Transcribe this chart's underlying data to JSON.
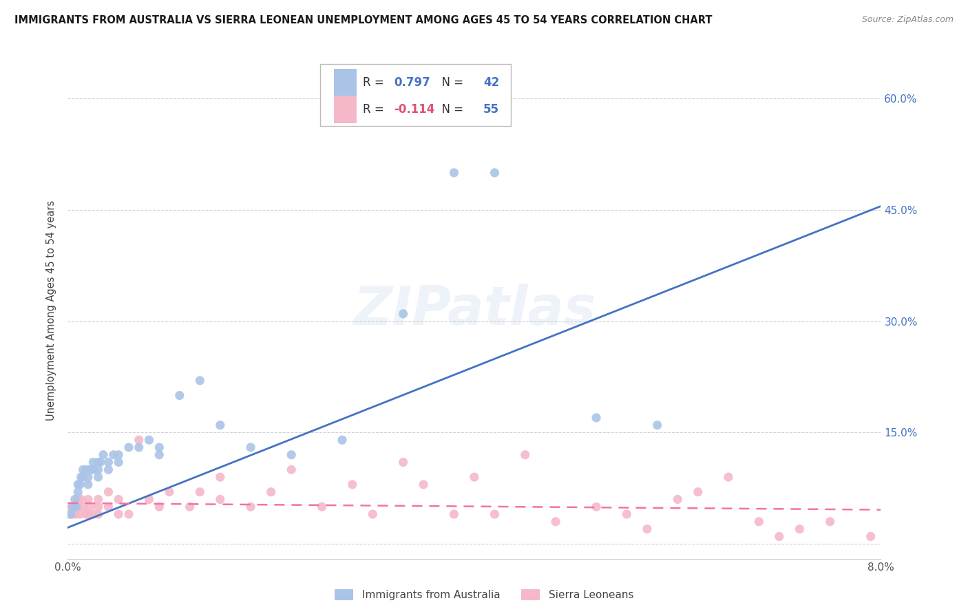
{
  "title": "IMMIGRANTS FROM AUSTRALIA VS SIERRA LEONEAN UNEMPLOYMENT AMONG AGES 45 TO 54 YEARS CORRELATION CHART",
  "source": "Source: ZipAtlas.com",
  "ylabel": "Unemployment Among Ages 45 to 54 years",
  "xlim": [
    0.0,
    0.08
  ],
  "ylim": [
    -0.02,
    0.65
  ],
  "yticks": [
    0.0,
    0.15,
    0.3,
    0.45,
    0.6
  ],
  "ytick_labels": [
    "",
    "15.0%",
    "30.0%",
    "45.0%",
    "60.0%"
  ],
  "xticks": [
    0.0,
    0.01,
    0.02,
    0.03,
    0.04,
    0.05,
    0.06,
    0.07,
    0.08
  ],
  "xtick_labels": [
    "0.0%",
    "",
    "",
    "",
    "",
    "",
    "",
    "",
    "8.0%"
  ],
  "legend_label1": "Immigrants from Australia",
  "legend_label2": "Sierra Leoneans",
  "R1": 0.797,
  "N1": 42,
  "R2": -0.114,
  "N2": 55,
  "color_blue": "#aac4e8",
  "color_pink": "#f4b8c8",
  "color_blue_line": "#4472c4",
  "color_pink_line": "#f472a0",
  "color_blue_text": "#4472c4",
  "color_pink_text": "#e05070",
  "background_color": "#ffffff",
  "grid_color": "#cccccc",
  "australia_x": [
    0.0003,
    0.0005,
    0.0007,
    0.0008,
    0.001,
    0.001,
    0.0012,
    0.0013,
    0.0015,
    0.0015,
    0.0018,
    0.002,
    0.002,
    0.0022,
    0.0025,
    0.0025,
    0.003,
    0.003,
    0.003,
    0.0032,
    0.0035,
    0.004,
    0.004,
    0.0045,
    0.005,
    0.005,
    0.006,
    0.007,
    0.008,
    0.009,
    0.009,
    0.011,
    0.013,
    0.015,
    0.018,
    0.022,
    0.027,
    0.033,
    0.038,
    0.042,
    0.052,
    0.058
  ],
  "australia_y": [
    0.04,
    0.05,
    0.06,
    0.05,
    0.07,
    0.08,
    0.08,
    0.09,
    0.09,
    0.1,
    0.1,
    0.08,
    0.09,
    0.1,
    0.1,
    0.11,
    0.09,
    0.1,
    0.11,
    0.11,
    0.12,
    0.1,
    0.11,
    0.12,
    0.11,
    0.12,
    0.13,
    0.13,
    0.14,
    0.13,
    0.12,
    0.2,
    0.22,
    0.16,
    0.13,
    0.12,
    0.14,
    0.31,
    0.5,
    0.5,
    0.17,
    0.16
  ],
  "sierraleone_x": [
    0.0002,
    0.0003,
    0.0005,
    0.0006,
    0.0008,
    0.001,
    0.001,
    0.0012,
    0.0013,
    0.0015,
    0.0018,
    0.002,
    0.002,
    0.0022,
    0.0025,
    0.003,
    0.003,
    0.003,
    0.004,
    0.004,
    0.005,
    0.005,
    0.006,
    0.007,
    0.008,
    0.009,
    0.01,
    0.012,
    0.013,
    0.015,
    0.015,
    0.018,
    0.02,
    0.022,
    0.025,
    0.028,
    0.03,
    0.033,
    0.035,
    0.038,
    0.04,
    0.042,
    0.045,
    0.048,
    0.052,
    0.055,
    0.057,
    0.06,
    0.062,
    0.065,
    0.068,
    0.07,
    0.072,
    0.075,
    0.079
  ],
  "sierraleone_y": [
    0.04,
    0.05,
    0.04,
    0.05,
    0.04,
    0.05,
    0.06,
    0.04,
    0.06,
    0.05,
    0.04,
    0.04,
    0.06,
    0.05,
    0.04,
    0.05,
    0.04,
    0.06,
    0.05,
    0.07,
    0.04,
    0.06,
    0.04,
    0.14,
    0.06,
    0.05,
    0.07,
    0.05,
    0.07,
    0.06,
    0.09,
    0.05,
    0.07,
    0.1,
    0.05,
    0.08,
    0.04,
    0.11,
    0.08,
    0.04,
    0.09,
    0.04,
    0.12,
    0.03,
    0.05,
    0.04,
    0.02,
    0.06,
    0.07,
    0.09,
    0.03,
    0.01,
    0.02,
    0.03,
    0.01
  ],
  "blue_line_x": [
    0.0,
    0.08
  ],
  "blue_line_y": [
    0.022,
    0.455
  ],
  "pink_line_x": [
    0.0,
    0.08
  ],
  "pink_line_y": [
    0.055,
    0.046
  ],
  "watermark": "ZIPatlas",
  "figsize": [
    14.06,
    8.92
  ],
  "dpi": 100
}
